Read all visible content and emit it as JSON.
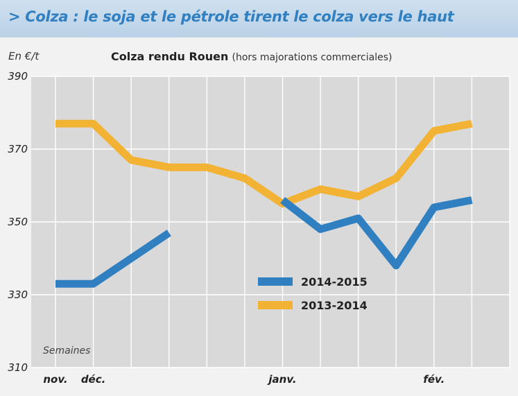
{
  "header": {
    "title": "> Colza : le soja et le pétrole tirent le colza vers le haut"
  },
  "chart_header": {
    "unit": "En €/t",
    "title_bold": "Colza rendu Rouen",
    "title_light": "(hors majorations commerciales)"
  },
  "colors": {
    "series_2014_2015": "#2f7fc1",
    "series_2013_2014": "#f2b233",
    "grid": "#ffffff",
    "plot_bg": "#d9d9d9"
  },
  "chart_data": {
    "type": "line",
    "title": "Colza rendu Rouen (hors majorations commerciales)",
    "ylabel": "En €/t",
    "xlabel": "Semaines",
    "ylim": [
      310,
      390
    ],
    "yticks": [
      310,
      330,
      350,
      370,
      390
    ],
    "x": [
      0,
      1,
      2,
      3,
      4,
      5,
      6,
      7,
      8,
      9,
      10,
      11,
      12
    ],
    "x_tick_labels": [
      {
        "x": 0,
        "label": "nov."
      },
      {
        "x": 1,
        "label": "déc."
      },
      {
        "x": 6,
        "label": "janv."
      },
      {
        "x": 10,
        "label": "fév."
      }
    ],
    "grid": true,
    "legend_position": "bottom-center",
    "series": [
      {
        "name": "2014-2015",
        "segments": [
          [
            [
              0,
              333
            ],
            [
              1,
              333
            ],
            [
              2,
              340
            ],
            [
              3,
              347
            ]
          ],
          [
            [
              6,
              356
            ],
            [
              7,
              348
            ],
            [
              8,
              351
            ],
            [
              9,
              338
            ],
            [
              10,
              354
            ],
            [
              11,
              356
            ]
          ]
        ]
      },
      {
        "name": "2013-2014",
        "segments": [
          [
            [
              0,
              377
            ],
            [
              1,
              377
            ],
            [
              2,
              367
            ],
            [
              3,
              365
            ],
            [
              4,
              365
            ],
            [
              5,
              362
            ],
            [
              6,
              355
            ],
            [
              7,
              359
            ],
            [
              8,
              357
            ],
            [
              9,
              362
            ],
            [
              10,
              375
            ],
            [
              11,
              377
            ]
          ]
        ]
      }
    ]
  }
}
